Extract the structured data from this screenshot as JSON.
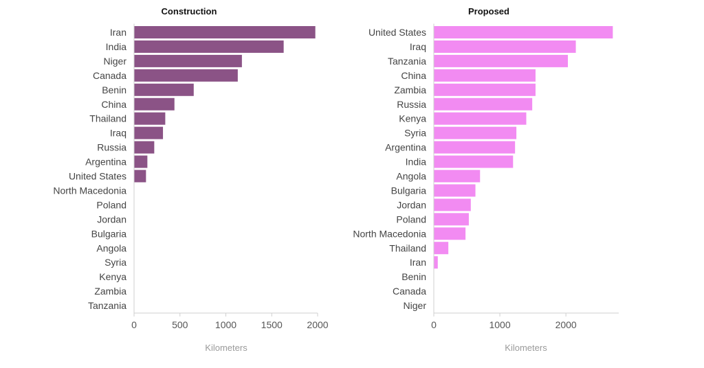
{
  "chart_data": [
    {
      "type": "bar",
      "orientation": "horizontal",
      "title": "Construction",
      "xlabel": "Kilometers",
      "ylabel": "",
      "color": "#8b5386",
      "xlim": [
        0,
        2000
      ],
      "xticks": [
        0,
        500,
        1000,
        1500,
        2000
      ],
      "grid": false,
      "categories": [
        "Iran",
        "India",
        "Niger",
        "Canada",
        "Benin",
        "China",
        "Thailand",
        "Iraq",
        "Russia",
        "Argentina",
        "United States",
        "North Macedonia",
        "Poland",
        "Jordan",
        "Bulgaria",
        "Angola",
        "Syria",
        "Kenya",
        "Zambia",
        "Tanzania"
      ],
      "values": [
        1975,
        1630,
        1175,
        1130,
        650,
        440,
        340,
        315,
        220,
        145,
        130,
        0,
        0,
        0,
        0,
        0,
        0,
        0,
        0,
        0
      ]
    },
    {
      "type": "bar",
      "orientation": "horizontal",
      "title": "Proposed",
      "xlabel": "Kilometers",
      "ylabel": "",
      "color": "#f28bf2",
      "xlim": [
        0,
        2800
      ],
      "xticks": [
        0,
        1000,
        2000
      ],
      "grid": false,
      "categories": [
        "United States",
        "Iraq",
        "Tanzania",
        "China",
        "Zambia",
        "Russia",
        "Kenya",
        "Syria",
        "Argentina",
        "India",
        "Angola",
        "Bulgaria",
        "Jordan",
        "Poland",
        "North Macedonia",
        "Thailand",
        "Iran",
        "Benin",
        "Canada",
        "Niger"
      ],
      "values": [
        2710,
        2150,
        2030,
        1540,
        1540,
        1490,
        1400,
        1250,
        1230,
        1200,
        700,
        630,
        560,
        530,
        480,
        220,
        60,
        0,
        0,
        0
      ]
    }
  ]
}
